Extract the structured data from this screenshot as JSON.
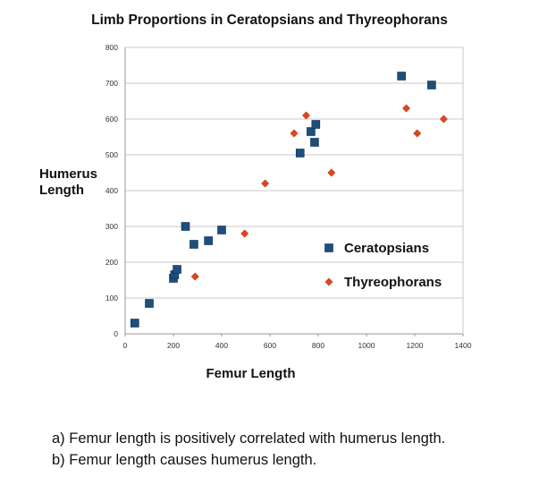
{
  "chart_data": {
    "type": "scatter",
    "title": "Limb Proportions in Ceratopsians and Thyreophorans",
    "xlabel": "Femur Length",
    "ylabel_line1": "Humerus",
    "ylabel_line2": "Length",
    "xlim": [
      0,
      1400
    ],
    "ylim": [
      0,
      800
    ],
    "xticks": [
      "0",
      "200",
      "400",
      "600",
      "800",
      "1000",
      "1200",
      "1400"
    ],
    "yticks": [
      "0",
      "100",
      "200",
      "300",
      "400",
      "500",
      "600",
      "700",
      "800"
    ],
    "grid": "horizontal",
    "legend_position": "right-lower",
    "series": [
      {
        "name": "Ceratopsians",
        "marker": "square",
        "color": "#1c4f7c",
        "points": [
          [
            40,
            30
          ],
          [
            100,
            85
          ],
          [
            200,
            155
          ],
          [
            205,
            165
          ],
          [
            215,
            180
          ],
          [
            250,
            300
          ],
          [
            285,
            250
          ],
          [
            345,
            260
          ],
          [
            400,
            290
          ],
          [
            725,
            505
          ],
          [
            770,
            565
          ],
          [
            785,
            535
          ],
          [
            790,
            585
          ],
          [
            1145,
            720
          ],
          [
            1270,
            695
          ]
        ]
      },
      {
        "name": "Thyreophorans",
        "marker": "diamond",
        "color": "#e0451f",
        "points": [
          [
            290,
            160
          ],
          [
            495,
            280
          ],
          [
            580,
            420
          ],
          [
            700,
            560
          ],
          [
            750,
            610
          ],
          [
            855,
            450
          ],
          [
            1165,
            630
          ],
          [
            1210,
            560
          ],
          [
            1320,
            600
          ]
        ]
      }
    ]
  },
  "notes": [
    "a)  Femur length is positively correlated with humerus length.",
    "b)  Femur length causes humerus length."
  ]
}
